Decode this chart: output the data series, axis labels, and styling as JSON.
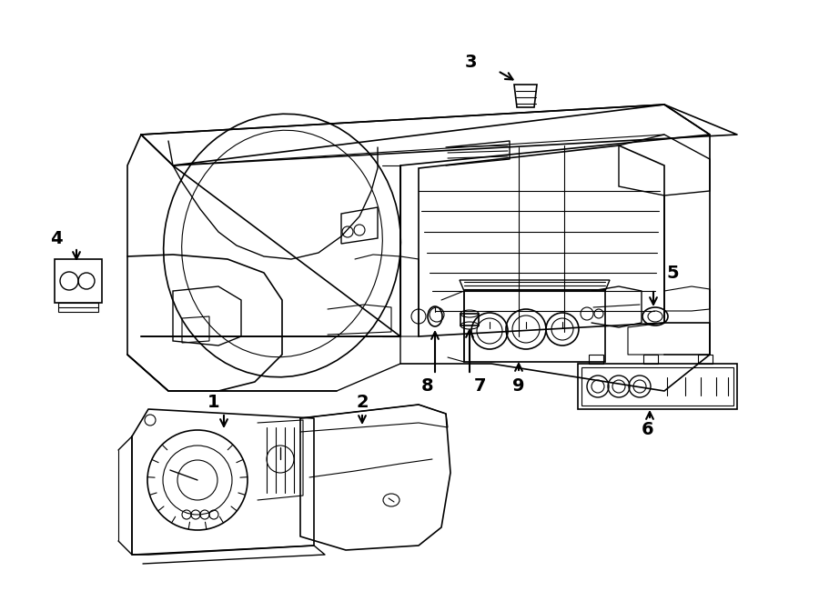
{
  "bg_color": "#ffffff",
  "line_color": "#000000",
  "fig_width": 9.0,
  "fig_height": 6.61,
  "dpi": 100,
  "lw_main": 1.2,
  "lw_thin": 0.8,
  "lw_med": 1.0
}
